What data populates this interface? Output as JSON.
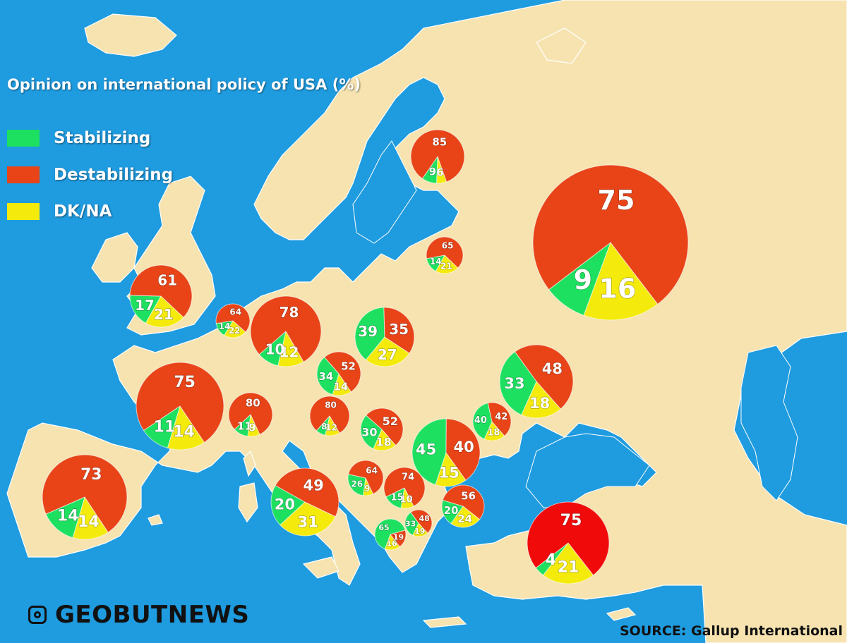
{
  "title": "Opinion on international policy of USA (%)",
  "legend": [
    {
      "key": "stabilizing",
      "label": "Stabilizing",
      "color": "#1ee060"
    },
    {
      "key": "destabilizing",
      "label": "Destabilizing",
      "color": "#e84418"
    },
    {
      "key": "dkna",
      "label": "DK/NA",
      "color": "#f4ea0c"
    }
  ],
  "colors": {
    "sea": "#1f9bdf",
    "land": "#f6e3b0",
    "border": "#ffffff",
    "stabilizing": "#1ee060",
    "destabilizing": "#e84418",
    "dkna": "#f4ea0c",
    "turkey_destabilizing": "#f00a0a"
  },
  "brand": {
    "icon": "instagram-icon",
    "name": "GEOBUTNEWS"
  },
  "source": "SOURCE: Gallup International",
  "chart_data": {
    "type": "pie",
    "title": "Opinion on international policy of USA (%)",
    "categories": [
      "Stabilizing",
      "Destabilizing",
      "DK/NA"
    ],
    "pies": [
      {
        "id": "russia",
        "stabilizing": 9,
        "destabilizing": 75,
        "dkna": 16
      },
      {
        "id": "finland",
        "stabilizing": 9,
        "destabilizing": 85,
        "dkna": 6
      },
      {
        "id": "latvia",
        "stabilizing": 14,
        "destabilizing": 65,
        "dkna": 21
      },
      {
        "id": "uk",
        "stabilizing": 17,
        "destabilizing": 61,
        "dkna": 21
      },
      {
        "id": "netherlands",
        "stabilizing": 14,
        "destabilizing": 64,
        "dkna": 22
      },
      {
        "id": "germany",
        "stabilizing": 10,
        "destabilizing": 78,
        "dkna": 12
      },
      {
        "id": "poland",
        "stabilizing": 39,
        "destabilizing": 35,
        "dkna": 27
      },
      {
        "id": "czechia",
        "stabilizing": 34,
        "destabilizing": 52,
        "dkna": 14
      },
      {
        "id": "ukraine",
        "stabilizing": 33,
        "destabilizing": 48,
        "dkna": 18
      },
      {
        "id": "france",
        "stabilizing": 11,
        "destabilizing": 75,
        "dkna": 14
      },
      {
        "id": "switzerland",
        "stabilizing": 11,
        "destabilizing": 80,
        "dkna": 9
      },
      {
        "id": "austria",
        "stabilizing": 8,
        "destabilizing": 80,
        "dkna": 12
      },
      {
        "id": "hungary",
        "stabilizing": 30,
        "destabilizing": 52,
        "dkna": 18
      },
      {
        "id": "moldova",
        "stabilizing": 40,
        "destabilizing": 42,
        "dkna": 18
      },
      {
        "id": "romania",
        "stabilizing": 45,
        "destabilizing": 40,
        "dkna": 15
      },
      {
        "id": "spain",
        "stabilizing": 14,
        "destabilizing": 73,
        "dkna": 14
      },
      {
        "id": "italy",
        "stabilizing": 20,
        "destabilizing": 49,
        "dkna": 31
      },
      {
        "id": "bosnia",
        "stabilizing": 26,
        "destabilizing": 64,
        "dkna": 9
      },
      {
        "id": "serbia",
        "stabilizing": 15,
        "destabilizing": 74,
        "dkna": 10
      },
      {
        "id": "bulgaria",
        "stabilizing": 20,
        "destabilizing": 56,
        "dkna": 24
      },
      {
        "id": "kosovo",
        "stabilizing": 65,
        "destabilizing": 19,
        "dkna": 16
      },
      {
        "id": "north_macedonia",
        "stabilizing": 33,
        "destabilizing": 48,
        "dkna": 19
      },
      {
        "id": "turkey",
        "stabilizing": 4,
        "destabilizing": 75,
        "dkna": 21
      }
    ]
  }
}
